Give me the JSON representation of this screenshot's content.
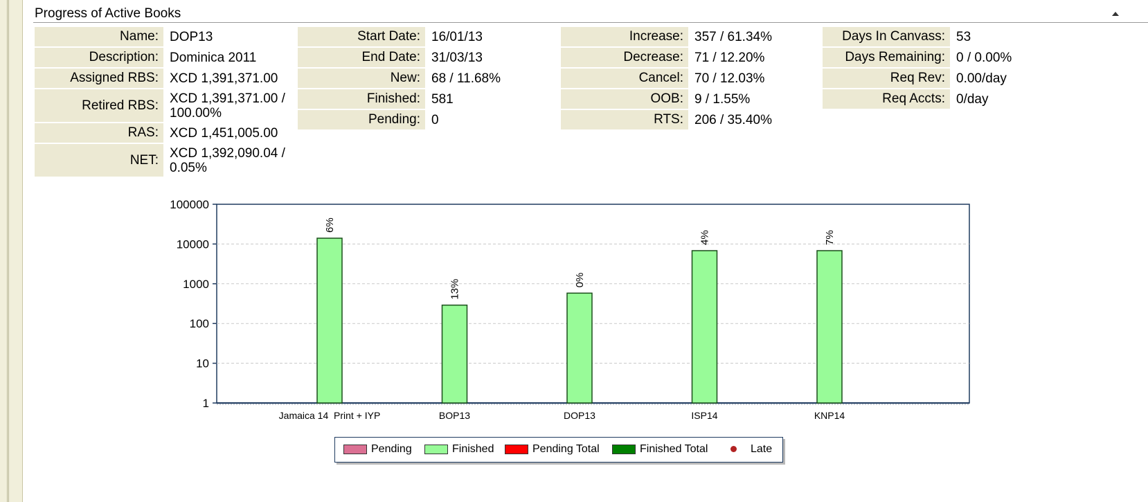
{
  "panel": {
    "title": "Progress of Active Books"
  },
  "book": {
    "name_label": "Name:",
    "name": "DOP13",
    "description_label": "Description:",
    "description": "Dominica 2011",
    "assigned_rbs_label": "Assigned RBS:",
    "assigned_rbs": "XCD 1,391,371.00",
    "retired_rbs_label": "Retired RBS:",
    "retired_rbs_line1": "XCD 1,391,371.00 /",
    "retired_rbs_line2": "100.00%",
    "ras_label": "RAS:",
    "ras": "XCD 1,451,005.00",
    "net_label": "NET:",
    "net_line1": "XCD 1,392,090.04 /",
    "net_line2": "0.05%"
  },
  "dates": {
    "start_label": "Start Date:",
    "start": "16/01/13",
    "end_label": "End Date:",
    "end": "31/03/13",
    "new_label": "New:",
    "new": "68 / 11.68%",
    "finished_label": "Finished:",
    "finished": "581",
    "pending_label": "Pending:",
    "pending": "0"
  },
  "changes": {
    "increase_label": "Increase:",
    "increase": "357 / 61.34%",
    "decrease_label": "Decrease:",
    "decrease": "71 / 12.20%",
    "cancel_label": "Cancel:",
    "cancel": "70 / 12.03%",
    "oob_label": "OOB:",
    "oob": "9 / 1.55%",
    "rts_label": "RTS:",
    "rts": "206 / 35.40%"
  },
  "canvass": {
    "days_in_label": "Days In Canvass:",
    "days_in": "53",
    "days_remaining_label": "Days Remaining:",
    "days_remaining": "0 / 0.00%",
    "req_rev_label": "Req Rev:",
    "req_rev": "0.00/day",
    "req_accts_label": "Req Accts:",
    "req_accts": "0/day"
  },
  "chart_data": {
    "type": "bar",
    "yscale": "log",
    "ylim": [
      1,
      100000
    ],
    "y_ticks": [
      "1",
      "10",
      "100",
      "1000",
      "10000",
      "100000"
    ],
    "grid": true,
    "categories": [
      "Jamaica 14  Print + IYP",
      "BOP13",
      "DOP13",
      "ISP14",
      "KNP14"
    ],
    "series": [
      {
        "name": "Finished",
        "color": "#98fb98",
        "values": [
          14000,
          290,
          581,
          6800,
          6800
        ],
        "labels": [
          "6%",
          "13%",
          "0%",
          "4%",
          "7%"
        ]
      }
    ],
    "legend": [
      {
        "name": "Pending",
        "color": "#db7093",
        "marker": "box"
      },
      {
        "name": "Finished",
        "color": "#98fb98",
        "marker": "box"
      },
      {
        "name": "Pending Total",
        "color": "#ff0000",
        "marker": "box"
      },
      {
        "name": "Finished Total",
        "color": "#008000",
        "marker": "box"
      },
      {
        "name": "Late",
        "color": "#b22222",
        "marker": "dot"
      }
    ],
    "legend_position": "bottom"
  }
}
